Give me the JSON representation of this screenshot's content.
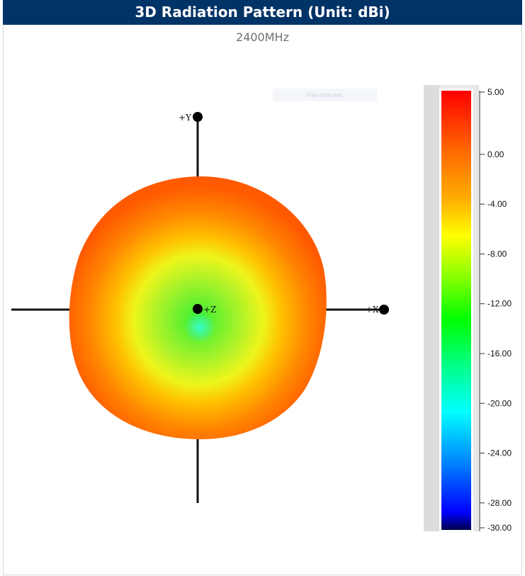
{
  "header": {
    "title": "3D Radiation Pattern (Unit: dBi)"
  },
  "subtitle": "2400MHz",
  "overlay_hint": "Free-form text",
  "colors": {
    "header_bg": "#003366",
    "scale_stops": [
      "#ff0000",
      "#ff6a00",
      "#ffb000",
      "#ffff00",
      "#80ff00",
      "#00ff00",
      "#00ff80",
      "#00ffff",
      "#0080ff",
      "#0000ff",
      "#00004a"
    ]
  },
  "chart_data": {
    "type": "heatmap",
    "title": "3D Radiation Pattern (Unit: dBi)",
    "subtitle": "2400MHz",
    "unit": "dBi",
    "frequency": "2400MHz",
    "view": "top view along +Z",
    "axes": [
      {
        "label": "+Y"
      },
      {
        "label": "+X"
      },
      {
        "label": "+Z"
      }
    ],
    "colorbar": {
      "min": -30,
      "max": 5,
      "ticks": [
        {
          "value": 5,
          "label": "5.00"
        },
        {
          "value": 0,
          "label": "0.00"
        },
        {
          "value": -4,
          "label": "-4.00"
        },
        {
          "value": -8,
          "label": "-8.00"
        },
        {
          "value": -12,
          "label": "-12.00"
        },
        {
          "value": -16,
          "label": "-16.00"
        },
        {
          "value": -20,
          "label": "-20.00"
        },
        {
          "value": -24,
          "label": "-24.00"
        },
        {
          "value": -28,
          "label": "-28.00"
        },
        {
          "value": -30,
          "label": "-30.00"
        }
      ]
    },
    "pattern_levels": [
      {
        "region": "outer rim",
        "approx_dBi": 1
      },
      {
        "region": "middle band",
        "approx_dBi": -4
      },
      {
        "region": "center (+Z direction)",
        "approx_dBi": -12
      },
      {
        "region": "null just below center",
        "approx_dBi": -19
      }
    ]
  }
}
